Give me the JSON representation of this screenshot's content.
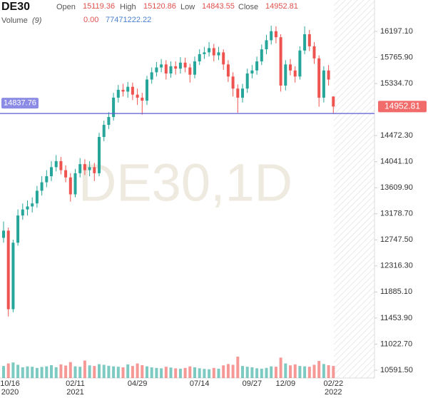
{
  "header": {
    "symbol": "DE30",
    "open_label": "Open",
    "high_label": "High",
    "low_label": "Low",
    "close_label": "Close",
    "volume_label": "Volume",
    "volume_period": "(9)",
    "volume_value_1": "0.00",
    "volume_value_2": "77471222.22"
  },
  "chart_data": {
    "type": "candlestick",
    "watermark": "DE30,1D",
    "categories": [
      "10/16",
      null,
      null,
      null,
      null,
      null,
      null,
      null,
      null,
      null,
      null,
      null,
      null,
      null,
      null,
      "02/11",
      null,
      null,
      null,
      null,
      null,
      null,
      null,
      null,
      null,
      null,
      null,
      null,
      "04/29",
      null,
      null,
      null,
      null,
      null,
      null,
      null,
      null,
      null,
      null,
      null,
      null,
      "07/14",
      null,
      null,
      null,
      null,
      null,
      null,
      null,
      null,
      null,
      null,
      "09/27",
      null,
      null,
      null,
      null,
      null,
      null,
      "12/09",
      null,
      null,
      null,
      null,
      null,
      null,
      null,
      null,
      null,
      "02/22"
    ],
    "category_years": [
      "2020",
      null,
      null,
      null,
      null,
      null,
      null,
      null,
      null,
      null,
      null,
      null,
      null,
      null,
      null,
      "2021",
      null,
      null,
      null,
      null,
      null,
      null,
      null,
      null,
      null,
      null,
      null,
      null,
      null,
      null,
      null,
      null,
      null,
      null,
      null,
      null,
      null,
      null,
      null,
      null,
      null,
      null,
      null,
      null,
      null,
      null,
      null,
      null,
      null,
      null,
      null,
      null,
      null,
      null,
      null,
      null,
      null,
      null,
      null,
      null,
      null,
      null,
      null,
      null,
      null,
      null,
      null,
      null,
      null,
      "2022"
    ],
    "open": [
      12780,
      12900,
      11600,
      12700,
      13150,
      13250,
      13300,
      13350,
      13560,
      13700,
      13800,
      13950,
      14050,
      13900,
      13780,
      13500,
      13850,
      14000,
      13900,
      13950,
      13850,
      14450,
      14650,
      14780,
      15100,
      15230,
      15200,
      15280,
      15150,
      15100,
      15050,
      15400,
      15520,
      15600,
      15650,
      15500,
      15620,
      15580,
      15680,
      15600,
      15480,
      15700,
      15820,
      15850,
      15920,
      15800,
      15850,
      15650,
      15450,
      15250,
      15100,
      15250,
      15500,
      15550,
      15700,
      15900,
      16050,
      16200,
      16100,
      15300,
      15650,
      15550,
      15450,
      15880,
      16150,
      15950,
      15750,
      15100,
      15550,
      15119.36
    ],
    "high": [
      13050,
      12950,
      12750,
      13250,
      13350,
      13400,
      13450,
      13640,
      13800,
      13900,
      14050,
      14150,
      14120,
      13980,
      13850,
      13920,
      14100,
      14080,
      14050,
      14020,
      14520,
      14720,
      14860,
      15180,
      15310,
      15330,
      15360,
      15350,
      15250,
      15180,
      15460,
      15600,
      15690,
      15740,
      15720,
      15700,
      15700,
      15770,
      15760,
      15660,
      15780,
      15900,
      15940,
      16020,
      15990,
      15940,
      15900,
      15720,
      15520,
      15320,
      15330,
      15580,
      15640,
      15780,
      15980,
      16140,
      16290,
      16280,
      16150,
      15720,
      15740,
      15620,
      15950,
      16280,
      16220,
      16020,
      15800,
      15620,
      15640,
      15120.86
    ],
    "low": [
      12700,
      11480,
      11550,
      12650,
      13080,
      13150,
      13200,
      13280,
      13480,
      13620,
      13720,
      13880,
      13830,
      13700,
      13380,
      13450,
      13780,
      13820,
      13800,
      13720,
      13800,
      14380,
      14580,
      14720,
      15020,
      15120,
      15100,
      15060,
      14980,
      14820,
      14980,
      15330,
      15450,
      15520,
      15400,
      15430,
      15480,
      15500,
      15520,
      15350,
      15420,
      15640,
      15740,
      15780,
      15700,
      15720,
      15560,
      15360,
      15120,
      14850,
      15020,
      15180,
      15420,
      15480,
      15640,
      15820,
      15980,
      16000,
      15200,
      15220,
      15470,
      15350,
      15400,
      15820,
      15870,
      15660,
      14950,
      15020,
      15300,
      14843.55
    ],
    "close": [
      12900,
      11600,
      12700,
      13150,
      13250,
      13300,
      13350,
      13560,
      13700,
      13800,
      13950,
      14050,
      13900,
      13780,
      13500,
      13850,
      14000,
      13900,
      13950,
      13850,
      14450,
      14650,
      14780,
      15100,
      15230,
      15200,
      15280,
      15150,
      15100,
      15050,
      15400,
      15520,
      15600,
      15650,
      15500,
      15620,
      15580,
      15680,
      15600,
      15480,
      15700,
      15820,
      15850,
      15920,
      15800,
      15850,
      15650,
      15450,
      15250,
      15100,
      15250,
      15500,
      15550,
      15700,
      15900,
      16050,
      16200,
      16100,
      15300,
      15650,
      15550,
      15450,
      15880,
      16150,
      15950,
      15750,
      15100,
      15550,
      15400,
      14952.81
    ],
    "volume": [
      62000000,
      75000000,
      80000000,
      68000000,
      55000000,
      60000000,
      58000000,
      52000000,
      57000000,
      60000000,
      66000000,
      55000000,
      70000000,
      64000000,
      82000000,
      60000000,
      58000000,
      90000000,
      65000000,
      62000000,
      71000000,
      68000000,
      63000000,
      60000000,
      58000000,
      55000000,
      70000000,
      62000000,
      75000000,
      66000000,
      60000000,
      55000000,
      52000000,
      50000000,
      58000000,
      54000000,
      50000000,
      48000000,
      52000000,
      60000000,
      55000000,
      50000000,
      47000000,
      45000000,
      52000000,
      48000000,
      65000000,
      72000000,
      68000000,
      110000000,
      62000000,
      58000000,
      55000000,
      50000000,
      48000000,
      52000000,
      60000000,
      58000000,
      105000000,
      75000000,
      65000000,
      70000000,
      62000000,
      60000000,
      58000000,
      68000000,
      88000000,
      72000000,
      66000000,
      62000000
    ],
    "up_color": "#26a69a",
    "down_color": "#ef5350",
    "price_line": 14837.76,
    "price_line_color": "#5b5bd6",
    "ylim": [
      10402,
      16716
    ],
    "yticks": [
      {
        "value": 10591.5,
        "label": "10591.50"
      },
      {
        "value": 11022.7,
        "label": "11022.70"
      },
      {
        "value": 11453.9,
        "label": "11453.90"
      },
      {
        "value": 11885.1,
        "label": "11885.10"
      },
      {
        "value": 12316.3,
        "label": "12316.30"
      },
      {
        "value": 12747.5,
        "label": "12747.50"
      },
      {
        "value": 13178.7,
        "label": "13178.70"
      },
      {
        "value": 13609.9,
        "label": "13609.90"
      },
      {
        "value": 14041.1,
        "label": "14041.10"
      },
      {
        "value": 14472.3,
        "label": "14472.30"
      },
      {
        "value": 15334.7,
        "label": "15334.70"
      },
      {
        "value": 15765.9,
        "label": "15765.90"
      },
      {
        "value": 16197.1,
        "label": "16197.10"
      }
    ],
    "grid": false
  }
}
